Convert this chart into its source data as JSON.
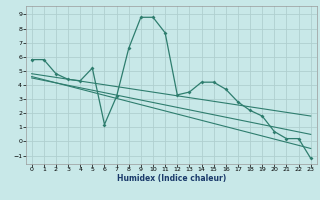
{
  "xlabel": "Humidex (Indice chaleur)",
  "bg_color": "#c8e8e8",
  "line_color": "#2e7d6e",
  "grid_color": "#b0cfcf",
  "xlim": [
    -0.5,
    23.5
  ],
  "ylim": [
    -1.6,
    9.6
  ],
  "xticks": [
    0,
    1,
    2,
    3,
    4,
    5,
    6,
    7,
    8,
    9,
    10,
    11,
    12,
    13,
    14,
    15,
    16,
    17,
    18,
    19,
    20,
    21,
    22,
    23
  ],
  "yticks": [
    -1,
    0,
    1,
    2,
    3,
    4,
    5,
    6,
    7,
    8,
    9
  ],
  "main_x": [
    0,
    1,
    2,
    3,
    4,
    5,
    6,
    7,
    8,
    9,
    10,
    11,
    12,
    13,
    14,
    15,
    16,
    17,
    18,
    19,
    20,
    21,
    22,
    23
  ],
  "main_y": [
    5.8,
    5.8,
    4.8,
    4.4,
    4.3,
    5.2,
    1.2,
    3.2,
    6.6,
    8.8,
    8.8,
    7.7,
    3.3,
    3.5,
    4.2,
    4.2,
    3.7,
    2.8,
    2.2,
    1.8,
    0.7,
    0.2,
    0.2,
    -1.2
  ],
  "trend1_x": [
    0,
    23
  ],
  "trend1_y": [
    4.8,
    1.8
  ],
  "trend2_x": [
    0,
    23
  ],
  "trend2_y": [
    4.5,
    0.5
  ],
  "trend3_x": [
    0,
    23
  ],
  "trend3_y": [
    4.6,
    -0.5
  ]
}
